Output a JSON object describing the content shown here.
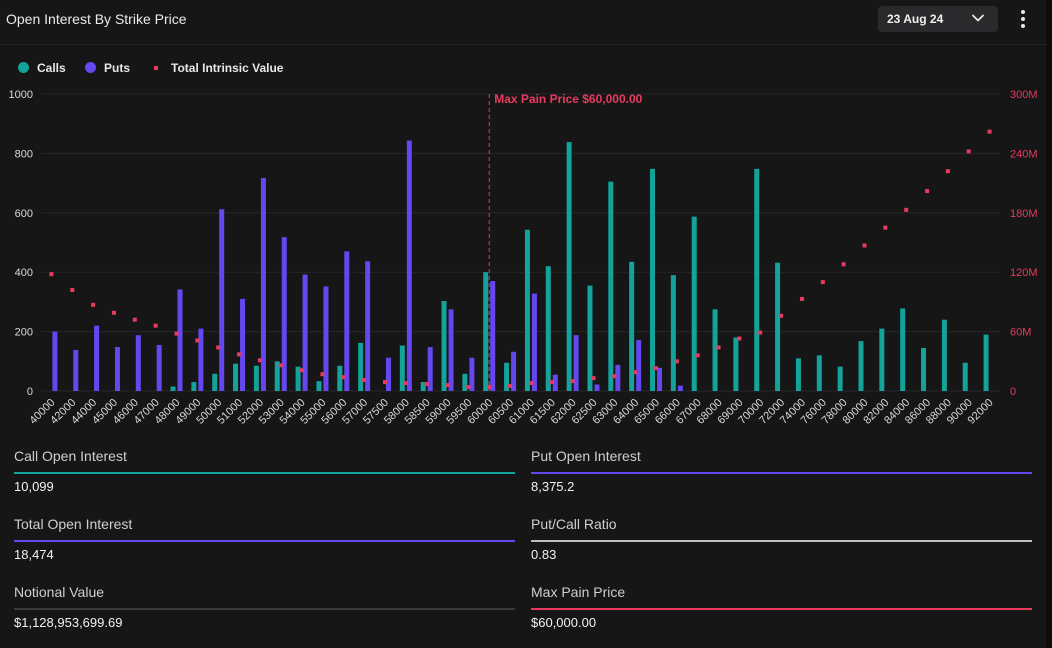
{
  "header": {
    "title": "Open Interest By Strike Price",
    "date": "23 Aug 24"
  },
  "legend": {
    "calls": "Calls",
    "puts": "Puts",
    "intrinsic": "Total Intrinsic Value"
  },
  "colors": {
    "calls": "#14a39a",
    "puts": "#6547f0",
    "intrinsic": "#e83a5e",
    "grid": "#262628",
    "axis_text": "#d8d8d8"
  },
  "chart_data": {
    "type": "bar",
    "categories": [
      "40000",
      "42000",
      "44000",
      "45000",
      "46000",
      "47000",
      "48000",
      "49000",
      "50000",
      "51000",
      "52000",
      "53000",
      "54000",
      "55000",
      "56000",
      "57000",
      "57500",
      "58000",
      "58500",
      "59000",
      "59500",
      "60000",
      "60500",
      "61000",
      "61500",
      "62000",
      "62500",
      "63000",
      "64000",
      "65000",
      "66000",
      "67000",
      "68000",
      "69000",
      "70000",
      "72000",
      "74000",
      "76000",
      "78000",
      "80000",
      "82000",
      "84000",
      "86000",
      "88000",
      "90000",
      "92000"
    ],
    "series": [
      {
        "name": "Calls",
        "axis": "left",
        "values": [
          0,
          0,
          0,
          0,
          0,
          0,
          15,
          30,
          58,
          92,
          85,
          100,
          82,
          33,
          85,
          162,
          0,
          153,
          30,
          303,
          58,
          400,
          95,
          543,
          420,
          838,
          355,
          705,
          435,
          748,
          390,
          587,
          275,
          180,
          748,
          432,
          110,
          120,
          82,
          168,
          210,
          278,
          145,
          240,
          95,
          190
        ]
      },
      {
        "name": "Puts",
        "axis": "left",
        "values": [
          200,
          138,
          220,
          148,
          188,
          155,
          342,
          210,
          612,
          310,
          717,
          518,
          392,
          352,
          470,
          437,
          112,
          843,
          148,
          275,
          112,
          370,
          132,
          328,
          55,
          188,
          22,
          88,
          172,
          78,
          18,
          0,
          0,
          0,
          0,
          0,
          0,
          0,
          0,
          0,
          0,
          0,
          0,
          0,
          0,
          0
        ]
      },
      {
        "name": "Total Intrinsic Value",
        "axis": "right",
        "type": "scatter",
        "values": [
          118,
          102,
          87,
          79,
          72,
          66,
          58,
          51,
          44,
          37,
          31,
          26,
          21,
          17,
          14,
          11,
          9,
          8,
          7,
          6,
          4,
          4,
          5,
          8,
          9,
          10,
          13,
          15,
          19,
          23,
          30,
          36,
          44,
          53,
          59,
          76,
          93,
          110,
          128,
          147,
          165,
          183,
          202,
          222,
          242,
          262
        ]
      }
    ],
    "ylim": [
      0,
      1000
    ],
    "yticks": [
      "0",
      "200",
      "400",
      "600",
      "800",
      "1000"
    ],
    "y2lim": [
      0,
      300
    ],
    "y2ticks": [
      "0",
      "60M",
      "120M",
      "180M",
      "240M",
      "300M"
    ],
    "marker": {
      "category": "60000",
      "label": "Max Pain Price $60,000.00"
    },
    "grid": true,
    "legend_position": "top-left"
  },
  "metrics": [
    {
      "label": "Call Open Interest",
      "value": "10,099",
      "color": "#14a39a"
    },
    {
      "label": "Put Open Interest",
      "value": "8,375.2",
      "color": "#6547f0"
    },
    {
      "label": "Total Open Interest",
      "value": "18,474",
      "color": "#6547f0"
    },
    {
      "label": "Put/Call Ratio",
      "value": "0.83",
      "color": "#bdbdbd"
    },
    {
      "label": "Notional Value",
      "value": "$1,128,953,699.69",
      "color": "#3a3a3c"
    },
    {
      "label": "Max Pain Price",
      "value": "$60,000.00",
      "color": "#e83a5e"
    }
  ]
}
